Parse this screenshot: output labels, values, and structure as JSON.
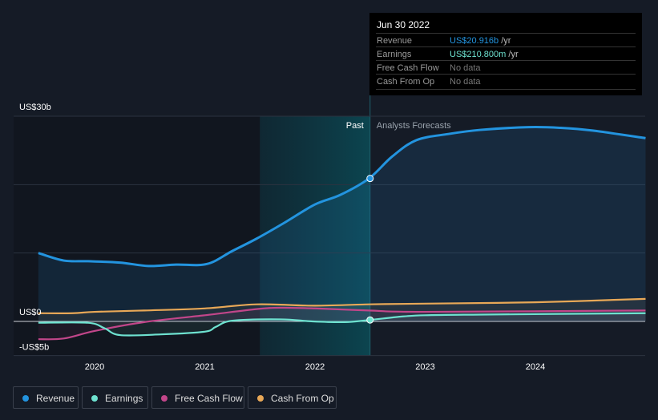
{
  "tooltip": {
    "date": "Jun 30 2022",
    "rows": [
      {
        "label": "Revenue",
        "value": "US$20.916b",
        "unit": " /yr",
        "color": "#2394df"
      },
      {
        "label": "Earnings",
        "value": "US$210.800m",
        "unit": " /yr",
        "color": "#6ee2d0"
      },
      {
        "label": "Free Cash Flow",
        "value": "No data",
        "unit": "",
        "color": "#777777"
      },
      {
        "label": "Cash From Op",
        "value": "No data",
        "unit": "",
        "color": "#777777"
      }
    ]
  },
  "legend": [
    {
      "label": "Revenue",
      "color": "#2394df"
    },
    {
      "label": "Earnings",
      "color": "#6ee2d0"
    },
    {
      "label": "Free Cash Flow",
      "color": "#c2468a"
    },
    {
      "label": "Cash From Op",
      "color": "#e8a857"
    }
  ],
  "chart_data": {
    "type": "line",
    "title": "",
    "xlabel": "",
    "ylabel": "",
    "ylim": [
      -5,
      30
    ],
    "xlim": [
      2019.45,
      2025.0
    ],
    "y_tick_labels": [
      "US$30b",
      "US$0",
      "-US$5b"
    ],
    "y_tick_values": [
      30,
      0,
      -5
    ],
    "x_ticks": [
      2020,
      2021,
      2022,
      2023,
      2024
    ],
    "x_tick_labels": [
      "2020",
      "2021",
      "2022",
      "2023",
      "2024"
    ],
    "annotations": {
      "past": "Past",
      "forecast": "Analysts Forecasts",
      "divider_x": 2022.5,
      "highlight_start": 2021.5
    },
    "legend_placement": "bottom-left",
    "series": [
      {
        "name": "Revenue",
        "color": "#2394df",
        "x": [
          2019.49,
          2019.72,
          2019.94,
          2020.23,
          2020.49,
          2020.74,
          2021.02,
          2021.25,
          2021.47,
          2021.72,
          2022.0,
          2022.23,
          2022.49,
          2022.7,
          2022.92,
          2023.21,
          2023.5,
          2023.94,
          2024.23,
          2024.52,
          2025.0
        ],
        "y": [
          10.0,
          8.9,
          8.8,
          8.6,
          8.1,
          8.3,
          8.4,
          10.3,
          12.1,
          14.4,
          17.1,
          18.5,
          20.9,
          24.1,
          26.5,
          27.4,
          28.0,
          28.4,
          28.3,
          27.9,
          26.8
        ]
      },
      {
        "name": "Earnings",
        "color": "#6ee2d0",
        "x": [
          2019.49,
          2019.94,
          2020.09,
          2020.23,
          2020.6,
          2021.0,
          2021.1,
          2021.25,
          2021.69,
          2021.98,
          2022.27,
          2022.49,
          2022.78,
          2023.0,
          2023.5,
          2025.0
        ],
        "y": [
          -0.2,
          -0.2,
          -1.0,
          -2.0,
          -1.9,
          -1.5,
          -0.8,
          0.1,
          0.3,
          0.0,
          -0.1,
          0.2,
          0.7,
          0.9,
          1.0,
          1.2
        ]
      },
      {
        "name": "Free Cash Flow",
        "color": "#c2468a",
        "x": [
          2019.49,
          2019.72,
          2020.0,
          2020.45,
          2021.0,
          2021.47,
          2021.69,
          2022.0,
          2022.49,
          2023.0,
          2025.0
        ],
        "y": [
          -2.6,
          -2.5,
          -1.4,
          -0.1,
          0.9,
          1.8,
          2.0,
          1.9,
          1.6,
          1.4,
          1.6
        ]
      },
      {
        "name": "Cash From Op",
        "color": "#e8a857",
        "x": [
          2019.49,
          2019.8,
          2020.0,
          2020.45,
          2021.0,
          2021.47,
          2022.0,
          2022.49,
          2023.0,
          2024.0,
          2025.0
        ],
        "y": [
          1.2,
          1.2,
          1.4,
          1.6,
          1.9,
          2.5,
          2.3,
          2.5,
          2.6,
          2.8,
          3.3
        ]
      }
    ]
  }
}
